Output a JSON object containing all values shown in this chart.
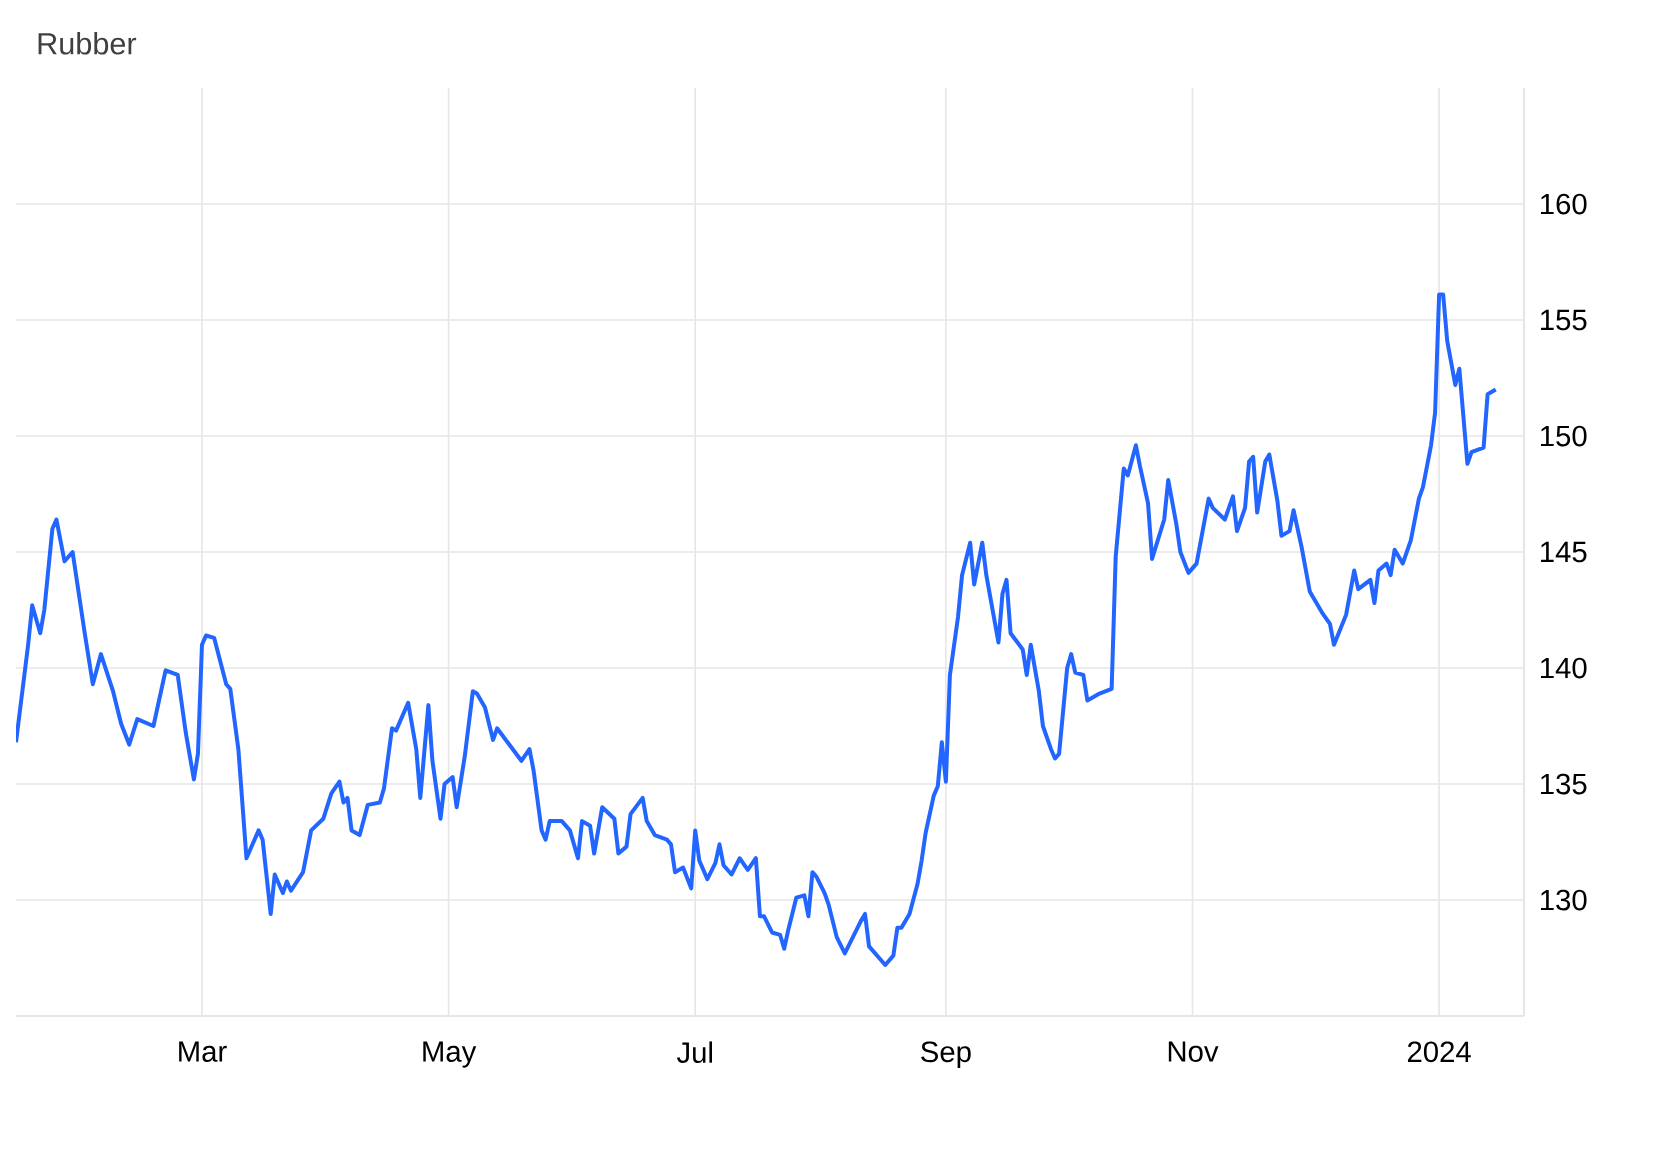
{
  "chart_data": {
    "type": "line",
    "title": "Rubber",
    "x": [
      "2023-01-14",
      "2023-01-17",
      "2023-01-18",
      "2023-01-20",
      "2023-01-21",
      "2023-01-23",
      "2023-01-24",
      "2023-01-26",
      "2023-01-28",
      "2023-01-31",
      "2023-02-02",
      "2023-02-04",
      "2023-02-07",
      "2023-02-09",
      "2023-02-11",
      "2023-02-13",
      "2023-02-17",
      "2023-02-20",
      "2023-02-23",
      "2023-02-25",
      "2023-02-27",
      "2023-02-28",
      "2023-03-01",
      "2023-03-02",
      "2023-03-04",
      "2023-03-07",
      "2023-03-08",
      "2023-03-10",
      "2023-03-12",
      "2023-03-15",
      "2023-03-16",
      "2023-03-18",
      "2023-03-19",
      "2023-03-21",
      "2023-03-22",
      "2023-03-23",
      "2023-03-26",
      "2023-03-28",
      "2023-03-31",
      "2023-04-02",
      "2023-04-04",
      "2023-04-05",
      "2023-04-06",
      "2023-04-07",
      "2023-04-09",
      "2023-04-11",
      "2023-04-14",
      "2023-04-15",
      "2023-04-17",
      "2023-04-18",
      "2023-04-21",
      "2023-04-23",
      "2023-04-24",
      "2023-04-26",
      "2023-04-27",
      "2023-04-29",
      "2023-04-30",
      "2023-05-02",
      "2023-05-03",
      "2023-05-05",
      "2023-05-07",
      "2023-05-08",
      "2023-05-10",
      "2023-05-12",
      "2023-05-13",
      "2023-05-16",
      "2023-05-19",
      "2023-05-21",
      "2023-05-22",
      "2023-05-24",
      "2023-05-25",
      "2023-05-26",
      "2023-05-29",
      "2023-05-31",
      "2023-06-02",
      "2023-06-03",
      "2023-06-05",
      "2023-06-06",
      "2023-06-08",
      "2023-06-11",
      "2023-06-12",
      "2023-06-14",
      "2023-06-15",
      "2023-06-18",
      "2023-06-19",
      "2023-06-21",
      "2023-06-24",
      "2023-06-25",
      "2023-06-26",
      "2023-06-28",
      "2023-06-30",
      "2023-07-01",
      "2023-07-02",
      "2023-07-04",
      "2023-07-06",
      "2023-07-07",
      "2023-07-08",
      "2023-07-10",
      "2023-07-12",
      "2023-07-14",
      "2023-07-16",
      "2023-07-17",
      "2023-07-18",
      "2023-07-20",
      "2023-07-22",
      "2023-07-23",
      "2023-07-24",
      "2023-07-26",
      "2023-07-28",
      "2023-07-29",
      "2023-07-30",
      "2023-07-31",
      "2023-08-02",
      "2023-08-03",
      "2023-08-05",
      "2023-08-07",
      "2023-08-11",
      "2023-08-12",
      "2023-08-13",
      "2023-08-17",
      "2023-08-19",
      "2023-08-20",
      "2023-08-21",
      "2023-08-23",
      "2023-08-25",
      "2023-08-26",
      "2023-08-27",
      "2023-08-29",
      "2023-08-30",
      "2023-08-31",
      "2023-09-01",
      "2023-09-02",
      "2023-09-04",
      "2023-09-05",
      "2023-09-07",
      "2023-09-08",
      "2023-09-10",
      "2023-09-11",
      "2023-09-14",
      "2023-09-15",
      "2023-09-16",
      "2023-09-17",
      "2023-09-20",
      "2023-09-21",
      "2023-09-22",
      "2023-09-24",
      "2023-09-25",
      "2023-09-27",
      "2023-09-28",
      "2023-09-29",
      "2023-10-01",
      "2023-10-02",
      "2023-10-03",
      "2023-10-05",
      "2023-10-06",
      "2023-10-09",
      "2023-10-12",
      "2023-10-13",
      "2023-10-15",
      "2023-10-16",
      "2023-10-18",
      "2023-10-19",
      "2023-10-21",
      "2023-10-22",
      "2023-10-25",
      "2023-10-26",
      "2023-10-28",
      "2023-10-29",
      "2023-10-31",
      "2023-11-02",
      "2023-11-05",
      "2023-11-06",
      "2023-11-09",
      "2023-11-11",
      "2023-11-12",
      "2023-11-14",
      "2023-11-15",
      "2023-11-16",
      "2023-11-17",
      "2023-11-19",
      "2023-11-20",
      "2023-11-22",
      "2023-11-23",
      "2023-11-25",
      "2023-11-26",
      "2023-11-28",
      "2023-11-30",
      "2023-12-03",
      "2023-12-05",
      "2023-12-06",
      "2023-12-09",
      "2023-12-11",
      "2023-12-12",
      "2023-12-15",
      "2023-12-16",
      "2023-12-17",
      "2023-12-19",
      "2023-12-20",
      "2023-12-21",
      "2023-12-23",
      "2023-12-25",
      "2023-12-27",
      "2023-12-28",
      "2023-12-30",
      "2023-12-31",
      "2024-01-01",
      "2024-01-02",
      "2024-01-03",
      "2024-01-05",
      "2024-01-06",
      "2024-01-08",
      "2024-01-09",
      "2024-01-12",
      "2024-01-13",
      "2024-01-15"
    ],
    "series": [
      {
        "color": "#2266ff",
        "values": [
          136.8,
          141,
          142.7,
          141.5,
          142.5,
          146,
          146.4,
          144.6,
          145,
          141.5,
          139.3,
          140.6,
          139,
          137.6,
          136.7,
          137.8,
          137.5,
          139.9,
          139.7,
          137.2,
          135.2,
          136.3,
          141,
          141.4,
          141.3,
          139.3,
          139.1,
          136.5,
          131.8,
          133,
          132.6,
          129.4,
          131.1,
          130.3,
          130.8,
          130.4,
          131.2,
          133,
          133.5,
          134.6,
          135.1,
          134.2,
          134.4,
          133,
          132.8,
          134.1,
          134.2,
          134.8,
          137.4,
          137.3,
          138.5,
          136.5,
          134.4,
          138.4,
          136,
          133.5,
          135,
          135.3,
          134,
          136.2,
          139,
          138.9,
          138.3,
          136.9,
          137.4,
          136.7,
          136,
          136.5,
          135.6,
          133,
          132.6,
          133.4,
          133.4,
          133,
          131.8,
          133.4,
          133.2,
          132,
          134,
          133.5,
          132,
          132.3,
          133.7,
          134.4,
          133.4,
          132.8,
          132.6,
          132.4,
          131.2,
          131.4,
          130.5,
          133,
          131.7,
          130.9,
          131.6,
          132.4,
          131.5,
          131.1,
          131.8,
          131.3,
          131.8,
          129.3,
          129.3,
          128.6,
          128.5,
          127.9,
          128.7,
          130.1,
          130.2,
          129.3,
          131.2,
          131,
          130.3,
          129.8,
          128.4,
          127.7,
          129.1,
          129.4,
          128,
          127.2,
          127.6,
          128.8,
          128.8,
          129.4,
          130.7,
          131.7,
          132.9,
          134.5,
          134.9,
          136.8,
          135.1,
          139.7,
          142.2,
          144,
          145.4,
          143.6,
          145.4,
          144,
          141.1,
          143.2,
          143.8,
          141.5,
          140.8,
          139.7,
          141,
          139,
          137.5,
          136.5,
          136.1,
          136.3,
          140,
          140.6,
          139.8,
          139.7,
          138.6,
          138.9,
          139.1,
          144.8,
          148.6,
          148.3,
          149.6,
          148.7,
          147.1,
          144.7,
          146.4,
          148.1,
          146.2,
          145,
          144.1,
          144.5,
          147.3,
          146.9,
          146.4,
          147.4,
          145.9,
          146.9,
          148.9,
          149.1,
          146.7,
          148.9,
          149.2,
          147.2,
          145.7,
          145.9,
          146.8,
          145.2,
          143.3,
          142.4,
          141.9,
          141,
          142.3,
          144.2,
          143.4,
          143.8,
          142.8,
          144.2,
          144.5,
          144,
          145.1,
          144.5,
          145.5,
          147.3,
          147.8,
          149.6,
          151,
          156.1,
          156.1,
          154.1,
          152.2,
          152.9,
          148.8,
          149.3,
          149.5,
          151.8,
          152
        ]
      }
    ],
    "xlim": [
      "2023-01-14",
      "2024-01-22"
    ],
    "xticks": [
      {
        "value": "2023-03-01",
        "label": "Mar"
      },
      {
        "value": "2023-05-01",
        "label": "May"
      },
      {
        "value": "2023-07-01",
        "label": "Jul"
      },
      {
        "value": "2023-09-01",
        "label": "Sep"
      },
      {
        "value": "2023-11-01",
        "label": "Nov"
      },
      {
        "value": "2024-01-01",
        "label": "2024"
      }
    ],
    "ylim": [
      125,
      165
    ],
    "yticks": [
      130,
      135,
      140,
      145,
      150,
      155,
      160
    ],
    "grid": true,
    "legend": false,
    "marker": "none",
    "line_style": "solid"
  }
}
